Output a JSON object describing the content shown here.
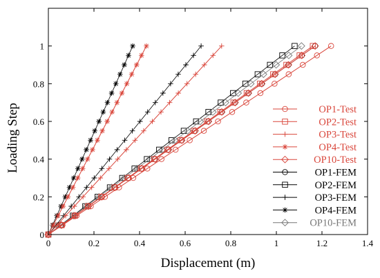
{
  "chart_data": {
    "type": "line",
    "xlabel": "Displacement (m)",
    "ylabel": "Loading Step",
    "xlim": [
      0,
      1.4
    ],
    "ylim": [
      0,
      1.2
    ],
    "xticks": [
      "0",
      "0.2",
      "0.4",
      "0.6",
      "0.8",
      "1",
      "1.2",
      "1.4"
    ],
    "yticks": [
      "0",
      "0.2",
      "0.4",
      "0.6",
      "0.8",
      "1"
    ],
    "grid": false,
    "legend_position": "right",
    "colors": {
      "test": "#d9453a",
      "fem": "#000000"
    },
    "series": [
      {
        "name": "OP1-Test",
        "color": "#d9453a",
        "marker": "circle",
        "endpoint": 1.24,
        "linewidth": 1.0
      },
      {
        "name": "OP2-Test",
        "color": "#d9453a",
        "marker": "square",
        "endpoint": 1.16,
        "linewidth": 1.0
      },
      {
        "name": "OP3-Test",
        "color": "#d9453a",
        "marker": "plus",
        "endpoint": 0.76,
        "linewidth": 1.0
      },
      {
        "name": "OP4-Test",
        "color": "#d9453a",
        "marker": "asterisk",
        "endpoint": 0.43,
        "linewidth": 1.0
      },
      {
        "name": "OP10-Test",
        "color": "#d9453a",
        "marker": "diamond",
        "endpoint": 1.17,
        "linewidth": 1.0
      },
      {
        "name": "OP1-FEM",
        "color": "#000000",
        "marker": "circle",
        "endpoint": 1.17,
        "linewidth": 0.8
      },
      {
        "name": "OP2-FEM",
        "color": "#000000",
        "marker": "square",
        "endpoint": 1.08,
        "linewidth": 0.8
      },
      {
        "name": "OP3-FEM",
        "color": "#000000",
        "marker": "plus",
        "endpoint": 0.67,
        "linewidth": 0.8
      },
      {
        "name": "OP4-FEM",
        "color": "#000000",
        "marker": "asterisk",
        "endpoint": 0.37,
        "linewidth": 0.8
      },
      {
        "name": "OP10-FEM",
        "color": "#777777",
        "marker": "diamond",
        "endpoint": 1.11,
        "linewidth": 0.8
      }
    ],
    "loading_steps": [
      0,
      0.05,
      0.1,
      0.15,
      0.2,
      0.25,
      0.3,
      0.35,
      0.4,
      0.45,
      0.5,
      0.55,
      0.6,
      0.65,
      0.7,
      0.75,
      0.8,
      0.85,
      0.9,
      0.95,
      1.0
    ],
    "note_values": "Each series is linear: displacement = endpoint x loading step"
  }
}
